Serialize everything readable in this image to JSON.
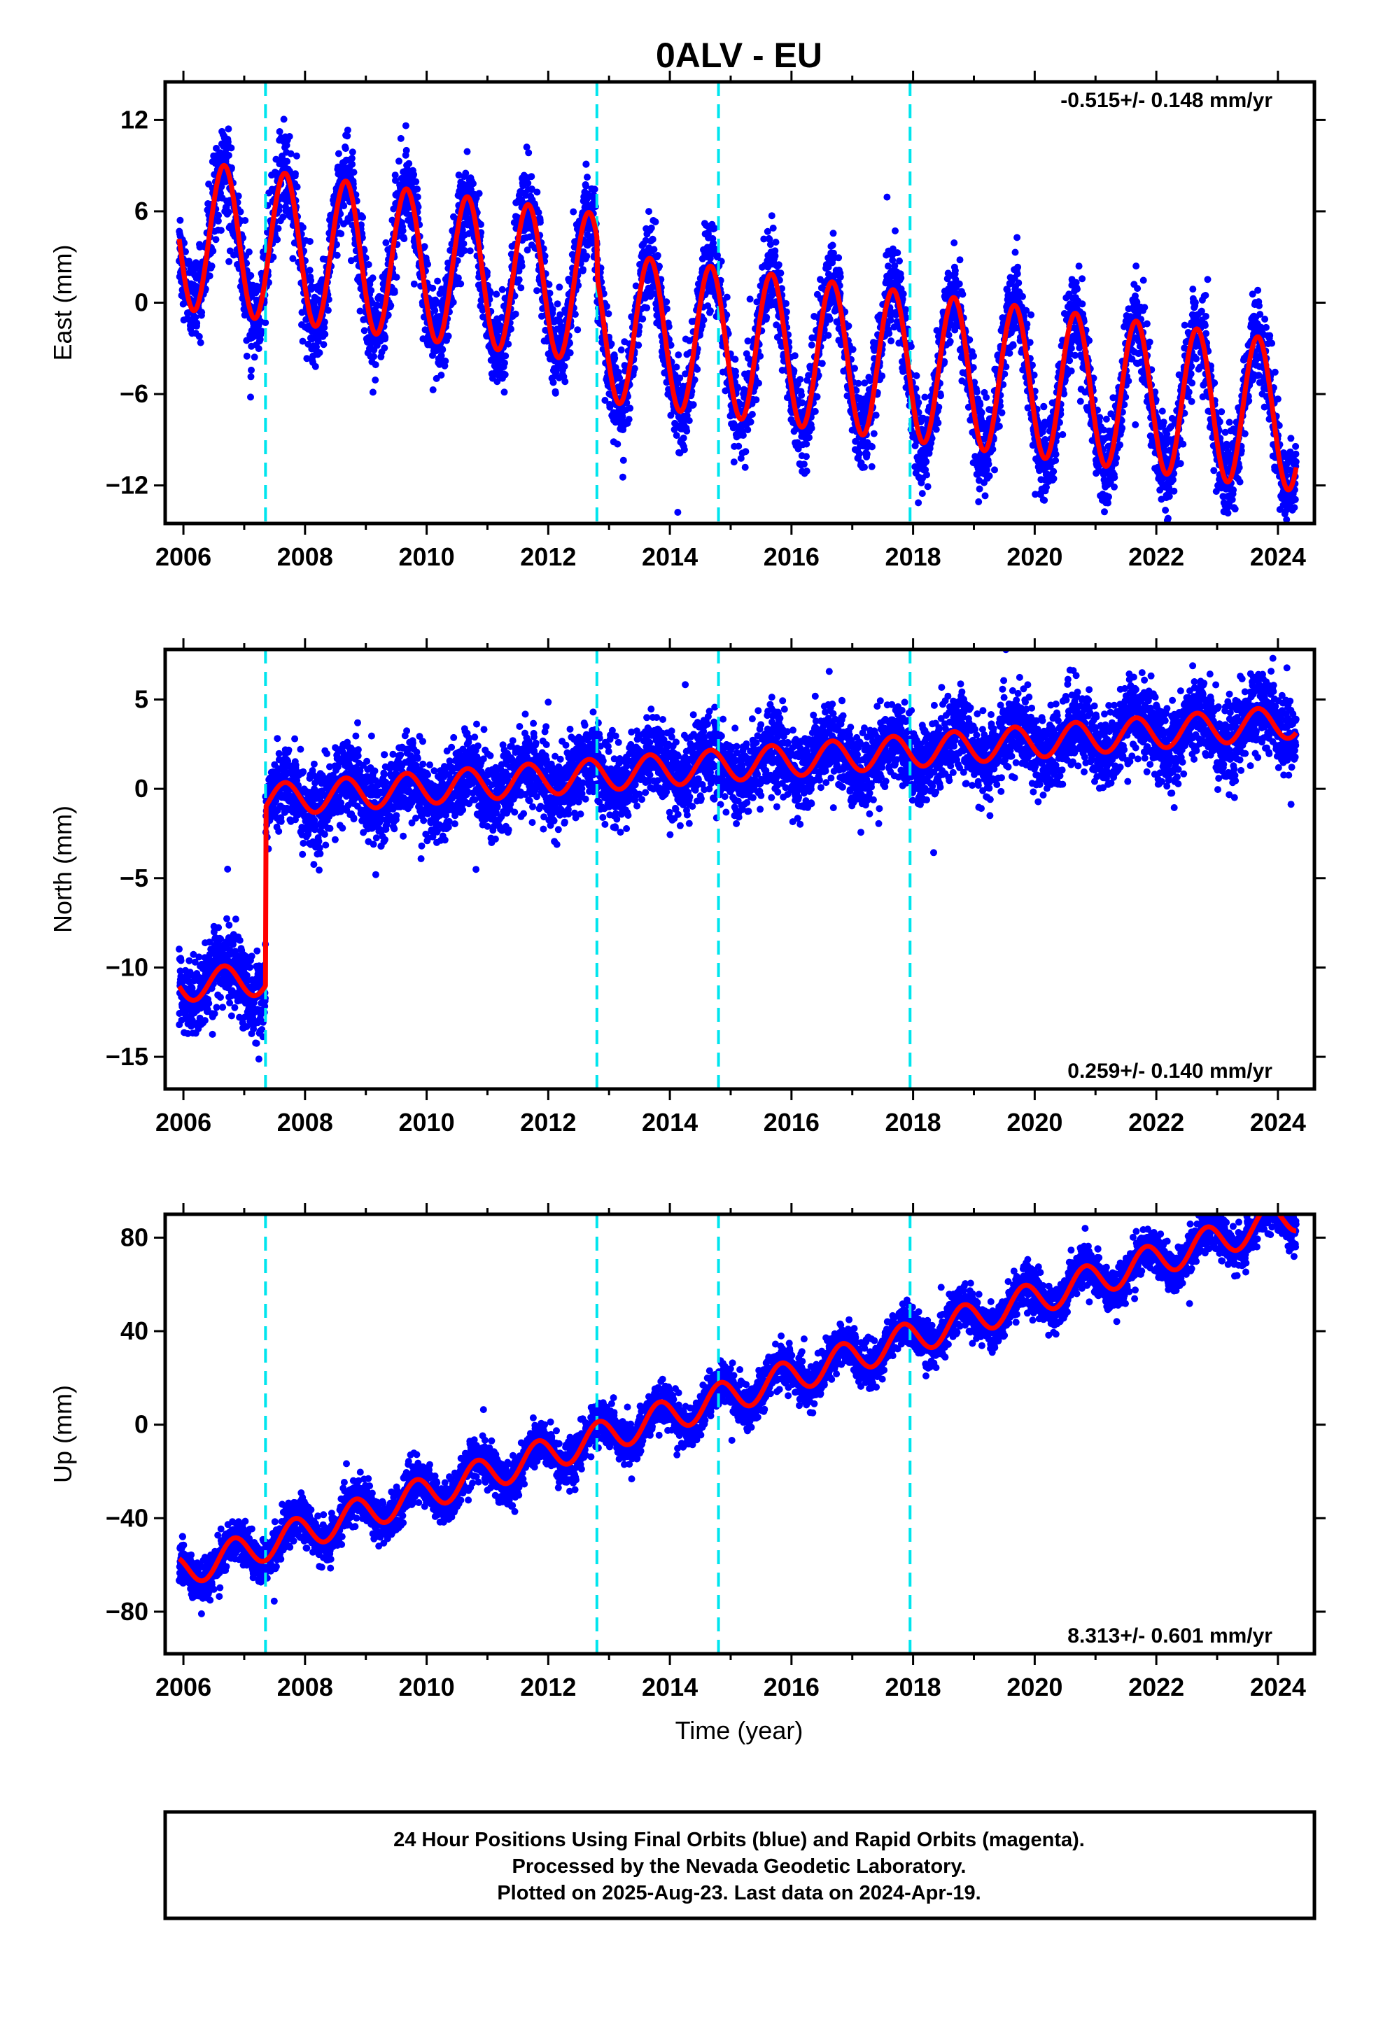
{
  "title": "0ALV - EU",
  "xlabel": "Time (year)",
  "footer": {
    "line1": "24 Hour Positions Using Final Orbits (blue) and Rapid Orbits (magenta).",
    "line2": "Processed by the Nevada Geodetic Laboratory.",
    "line3": "Plotted on 2025-Aug-23. Last data on 2024-Apr-19."
  },
  "colors": {
    "data": "#0000ff",
    "model": "#ff0000",
    "breaks": "#00e5ee",
    "frame": "#000000"
  },
  "chart_data": [
    {
      "type": "scatter",
      "name": "east",
      "ylabel": "East (mm)",
      "rate_label": "-0.515+/- 0.148 mm/yr",
      "xlim": [
        2005.7,
        2024.6
      ],
      "ylim": [
        -14.5,
        14.5
      ],
      "xticks": [
        "2006",
        "2008",
        "2010",
        "2012",
        "2014",
        "2016",
        "2018",
        "2020",
        "2022",
        "2024"
      ],
      "yticks": [
        "-12",
        "-6",
        "0",
        "6",
        "12"
      ],
      "ytick_values": [
        -12,
        -6,
        0,
        6,
        12
      ],
      "breaks": [
        2007.35,
        2012.8,
        2014.8,
        2017.95
      ],
      "data_start": 2005.93,
      "data_end": 2024.3,
      "offset": 4.5,
      "trend": -0.515,
      "annual_amp": 4.9,
      "annual_phase": 0.42,
      "steps": [
        {
          "x": 2012.8,
          "dy": -2.5
        }
      ],
      "noise": 1.4
    },
    {
      "type": "scatter",
      "name": "north",
      "ylabel": "North (mm)",
      "rate_label": "0.259+/- 0.140 mm/yr",
      "xlim": [
        2005.7,
        2024.6
      ],
      "ylim": [
        -16.8,
        7.8
      ],
      "xticks": [
        "2006",
        "2008",
        "2010",
        "2012",
        "2014",
        "2016",
        "2018",
        "2020",
        "2022",
        "2024"
      ],
      "yticks": [
        "-15",
        "-10",
        "-5",
        "0",
        "5"
      ],
      "ytick_values": [
        -15,
        -10,
        -5,
        0,
        5
      ],
      "breaks": [
        2007.35,
        2012.8,
        2014.8,
        2017.95
      ],
      "data_start": 2005.93,
      "data_end": 2024.3,
      "offset": -11.0,
      "trend": 0.259,
      "annual_amp": 0.9,
      "annual_phase": 0.42,
      "steps": [
        {
          "x": 2007.35,
          "dy": 10.0
        }
      ],
      "noise": 1.1
    },
    {
      "type": "scatter",
      "name": "up",
      "ylabel": "Up (mm)",
      "rate_label": "8.313+/- 0.601 mm/yr",
      "xlim": [
        2005.7,
        2024.6
      ],
      "ylim": [
        -98,
        90
      ],
      "xticks": [
        "2006",
        "2008",
        "2010",
        "2012",
        "2014",
        "2016",
        "2018",
        "2020",
        "2022",
        "2024"
      ],
      "yticks": [
        "-80",
        "-40",
        "0",
        "40",
        "80"
      ],
      "ytick_values": [
        -80,
        -40,
        0,
        40,
        80
      ],
      "breaks": [
        2007.35,
        2012.8,
        2014.8,
        2017.95
      ],
      "data_start": 2005.93,
      "data_end": 2024.3,
      "offset": -63.0,
      "trend": 8.313,
      "annual_amp": 7.0,
      "annual_phase": 0.58,
      "steps": [],
      "noise": 4.5
    }
  ]
}
